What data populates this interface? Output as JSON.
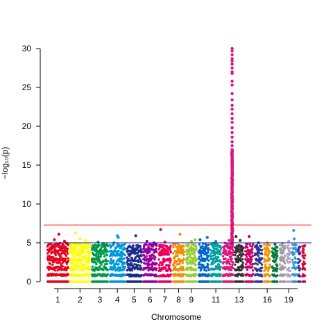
{
  "chart_data": {
    "type": "scatter",
    "title": "",
    "xlabel": "Chromosome",
    "ylabel": "−log₁₀(p)",
    "ylim": [
      0,
      30
    ],
    "yticks": [
      0,
      5,
      10,
      15,
      20,
      25,
      30
    ],
    "chromosomes": [
      {
        "name": "1",
        "show_label": true,
        "color": "#e8001c",
        "length": 250,
        "cap": 5.0,
        "extras": [
          [
            0.35,
            5.4
          ],
          [
            0.55,
            6.1
          ],
          [
            0.8,
            5.2
          ]
        ]
      },
      {
        "name": "2",
        "show_label": true,
        "color": "#ffff00",
        "length": 243,
        "cap": 5.0,
        "extras": [
          [
            0.3,
            6.3
          ],
          [
            0.5,
            5.5
          ],
          [
            0.75,
            5.3
          ]
        ]
      },
      {
        "name": "3",
        "show_label": true,
        "color": "#00994c",
        "length": 198,
        "cap": 4.9,
        "extras": [
          [
            0.4,
            5.1
          ],
          [
            0.7,
            4.9
          ]
        ]
      },
      {
        "name": "4",
        "show_label": true,
        "color": "#0099dd",
        "length": 190,
        "cap": 4.9,
        "extras": [
          [
            0.5,
            5.9
          ],
          [
            0.55,
            5.7
          ],
          [
            0.3,
            5.0
          ]
        ]
      },
      {
        "name": "5",
        "show_label": true,
        "color": "#1a2b8c",
        "length": 181,
        "cap": 4.7,
        "extras": [
          [
            0.6,
            5.9
          ]
        ]
      },
      {
        "name": "6",
        "show_label": true,
        "color": "#990099",
        "length": 171,
        "cap": 4.9,
        "extras": [
          [
            0.3,
            5.2
          ],
          [
            0.75,
            5.0
          ]
        ]
      },
      {
        "name": "7",
        "show_label": true,
        "color": "#e8005c",
        "length": 159,
        "cap": 4.8,
        "extras": [
          [
            0.2,
            6.7
          ],
          [
            0.5,
            5.1
          ]
        ]
      },
      {
        "name": "8",
        "show_label": true,
        "color": "#f28c00",
        "length": 145,
        "cap": 4.9,
        "extras": [
          [
            0.6,
            6.1
          ]
        ]
      },
      {
        "name": "9",
        "show_label": true,
        "color": "#99cc33",
        "length": 138,
        "cap": 4.8,
        "extras": [
          [
            0.5,
            5.2
          ],
          [
            0.8,
            5.4
          ]
        ]
      },
      {
        "name": "10",
        "show_label": false,
        "color": "#0066cc",
        "length": 134,
        "cap": 4.9,
        "extras": [
          [
            0.2,
            5.4
          ],
          [
            0.8,
            5.7
          ]
        ]
      },
      {
        "name": "11",
        "show_label": true,
        "color": "#00a0a0",
        "length": 135,
        "cap": 5.0,
        "extras": [
          [
            0.5,
            5.2
          ]
        ]
      },
      {
        "name": "12",
        "show_label": false,
        "color": "#e0147c",
        "length": 133,
        "cap": 5.0,
        "extras": [
          [
            0.6,
            5.3
          ]
        ],
        "peak": {
          "pos": 0.85,
          "points": [
            30.0,
            29.7,
            29.2,
            28.7,
            28.4,
            28.0,
            27.5,
            27.0,
            26.8,
            25.8,
            25.3,
            24.2,
            23.4,
            22.7,
            22.2,
            21.6,
            21.0,
            20.5,
            19.8,
            19.2,
            18.6,
            18.0,
            17.5,
            17.0,
            16.6,
            16.2,
            15.8,
            15.4,
            15.0,
            14.6,
            14.2,
            13.8,
            13.4,
            13.0,
            12.6,
            12.2,
            11.8,
            11.4,
            11.0,
            10.6,
            10.2,
            9.8,
            9.4,
            9.0,
            8.6,
            8.2,
            7.8,
            7.4,
            7.0,
            6.6,
            6.2,
            5.8,
            5.4,
            5.0,
            4.6
          ]
        }
      },
      {
        "name": "13",
        "show_label": true,
        "color": "#333333",
        "length": 115,
        "cap": 4.9,
        "extras": [
          [
            0.2,
            5.8
          ],
          [
            0.6,
            5.3
          ]
        ]
      },
      {
        "name": "14",
        "show_label": false,
        "color": "#cc0066",
        "length": 107,
        "cap": 4.9,
        "extras": [
          [
            0.5,
            5.8
          ]
        ]
      },
      {
        "name": "15",
        "show_label": false,
        "color": "#2a3b99",
        "length": 102,
        "cap": 4.8,
        "extras": [
          [
            0.5,
            5.0
          ]
        ]
      },
      {
        "name": "16",
        "show_label": true,
        "color": "#f29400",
        "length": 90,
        "cap": 4.8,
        "extras": [
          [
            0.5,
            5.0
          ]
        ]
      },
      {
        "name": "17",
        "show_label": false,
        "color": "#007a3d",
        "length": 83,
        "cap": 4.5,
        "extras": [
          [
            0.5,
            4.8
          ]
        ]
      },
      {
        "name": "18",
        "show_label": false,
        "color": "#9e9e9e",
        "length": 80,
        "cap": 4.7,
        "extras": [
          [
            0.5,
            4.9
          ]
        ]
      },
      {
        "name": "19",
        "show_label": true,
        "color": "#b4a0d0",
        "length": 59,
        "cap": 4.7,
        "extras": [
          [
            0.5,
            5.2
          ]
        ]
      },
      {
        "name": "20",
        "show_label": false,
        "color": "#3399cc",
        "length": 64,
        "cap": 4.9,
        "extras": [
          [
            0.4,
            6.6
          ],
          [
            0.5,
            5.5
          ]
        ]
      },
      {
        "name": "21",
        "show_label": false,
        "color": "#3333aa",
        "length": 47,
        "cap": 4.6,
        "extras": []
      },
      {
        "name": "22",
        "show_label": false,
        "color": "#e0002a",
        "length": 51,
        "cap": 4.7,
        "extras": []
      }
    ],
    "thresholds": [
      {
        "value": 7.3,
        "color": "#ff0000"
      },
      {
        "value": 5.0,
        "color": "#1a1aaa"
      }
    ],
    "grid": false,
    "legend": "none"
  }
}
